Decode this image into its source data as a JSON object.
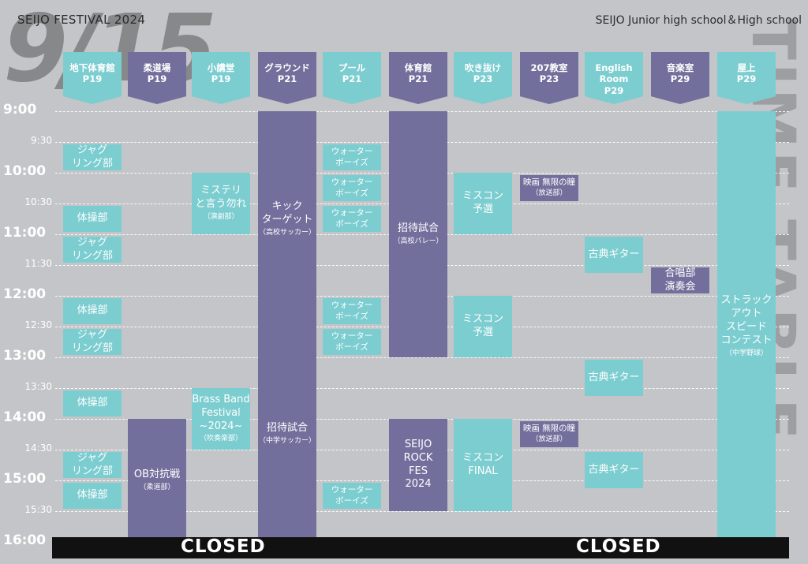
{
  "header": {
    "left": "SEIJO FESTIVAL 2024",
    "right": "SEIJO Junior high school＆High school",
    "date": "9/15",
    "vertical": "TIME TABLE"
  },
  "columns": [
    {
      "name": "地下体育館",
      "page": "P19"
    },
    {
      "name": "柔道場",
      "page": "P19"
    },
    {
      "name": "小講堂",
      "page": "P19"
    },
    {
      "name": "グラウンド",
      "page": "P21"
    },
    {
      "name": "プール",
      "page": "P21"
    },
    {
      "name": "体育館",
      "page": "P21"
    },
    {
      "name": "吹き抜け",
      "page": "P23"
    },
    {
      "name": "207教室",
      "page": "P23"
    },
    {
      "name": "English\nRoom",
      "page": "P29"
    },
    {
      "name": "音楽室",
      "page": "P29"
    },
    {
      "name": "屋上",
      "page": "P29"
    }
  ],
  "times": {
    "hours": [
      "9:00",
      "10:00",
      "11:00",
      "12:00",
      "13:00",
      "14:00",
      "15:00",
      "16:00"
    ],
    "halves": [
      "9:30",
      "10:30",
      "11:30",
      "12:30",
      "13:30",
      "14:30",
      "15:30"
    ]
  },
  "events": [
    {
      "col": 0,
      "start": "9:30",
      "end": "10:00",
      "title": "ジャグ\nリング部",
      "sub": "",
      "color": "teal"
    },
    {
      "col": 0,
      "start": "10:30",
      "end": "11:00",
      "title": "体操部",
      "sub": "",
      "color": "teal"
    },
    {
      "col": 0,
      "start": "11:00",
      "end": "11:30",
      "title": "ジャグ\nリング部",
      "sub": "",
      "color": "teal"
    },
    {
      "col": 0,
      "start": "12:00",
      "end": "12:30",
      "title": "体操部",
      "sub": "",
      "color": "teal"
    },
    {
      "col": 0,
      "start": "12:30",
      "end": "13:00",
      "title": "ジャグ\nリング部",
      "sub": "",
      "color": "teal"
    },
    {
      "col": 0,
      "start": "13:30",
      "end": "14:00",
      "title": "体操部",
      "sub": "",
      "color": "teal"
    },
    {
      "col": 0,
      "start": "14:30",
      "end": "15:00",
      "title": "ジャグ\nリング部",
      "sub": "",
      "color": "teal"
    },
    {
      "col": 0,
      "start": "15:00",
      "end": "15:30",
      "title": "体操部",
      "sub": "",
      "color": "teal"
    },
    {
      "col": 1,
      "start": "14:00",
      "end": "16:00",
      "title": "OB対抗戦",
      "sub": "（柔道部）",
      "color": "purple"
    },
    {
      "col": 2,
      "start": "10:00",
      "end": "11:00",
      "title": "ミステリ\nと言う勿れ",
      "sub": "（演劇部）",
      "color": "teal"
    },
    {
      "col": 2,
      "start": "13:30",
      "end": "14:30",
      "title": "Brass Band\nFestival\n~2024~",
      "sub": "（吹奏楽部）",
      "color": "teal"
    },
    {
      "col": 3,
      "start": "9:00",
      "end": "12:30",
      "title": "キック\nターゲット",
      "sub": "（高校サッカー）",
      "color": "purple"
    },
    {
      "col": 3,
      "start": "12:30",
      "end": "16:00",
      "title": "招待試合",
      "sub": "（中学サッカー）",
      "color": "purple"
    },
    {
      "col": 4,
      "start": "9:30",
      "end": "10:00",
      "title": "ウォーター\nボーイズ",
      "sub": "",
      "color": "teal",
      "small": true
    },
    {
      "col": 4,
      "start": "10:00",
      "end": "10:30",
      "title": "ウォーター\nボーイズ",
      "sub": "",
      "color": "teal",
      "small": true
    },
    {
      "col": 4,
      "start": "10:30",
      "end": "11:00",
      "title": "ウォーター\nボーイズ",
      "sub": "",
      "color": "teal",
      "small": true
    },
    {
      "col": 4,
      "start": "12:00",
      "end": "12:30",
      "title": "ウォーター\nボーイズ",
      "sub": "",
      "color": "teal",
      "small": true
    },
    {
      "col": 4,
      "start": "12:30",
      "end": "13:00",
      "title": "ウォーター\nボーイズ",
      "sub": "",
      "color": "teal",
      "small": true
    },
    {
      "col": 4,
      "start": "15:00",
      "end": "15:30",
      "title": "ウォーター\nボーイズ",
      "sub": "",
      "color": "teal",
      "small": true
    },
    {
      "col": 5,
      "start": "9:00",
      "end": "13:00",
      "title": "招待試合",
      "sub": "（高校バレー）",
      "color": "purple"
    },
    {
      "col": 5,
      "start": "14:00",
      "end": "15:30",
      "title": "SEIJO\nROCK\nFES\n2024",
      "sub": "",
      "color": "purple"
    },
    {
      "col": 6,
      "start": "10:00",
      "end": "11:00",
      "title": "ミスコン\n予選",
      "sub": "",
      "color": "teal"
    },
    {
      "col": 6,
      "start": "12:00",
      "end": "13:00",
      "title": "ミスコン\n予選",
      "sub": "",
      "color": "teal"
    },
    {
      "col": 6,
      "start": "14:00",
      "end": "15:30",
      "title": "ミスコン\nFINAL",
      "sub": "",
      "color": "teal"
    },
    {
      "col": 7,
      "start": "10:00",
      "end": "10:30",
      "title": "映画 無限の瞳",
      "sub": "（放送部）",
      "color": "purple",
      "small": true
    },
    {
      "col": 7,
      "start": "14:00",
      "end": "14:30",
      "title": "映画 無限の瞳",
      "sub": "（放送部）",
      "color": "purple",
      "small": true
    },
    {
      "col": 8,
      "start": "11:00",
      "end": "11:40",
      "title": "古典ギター",
      "sub": "",
      "color": "teal"
    },
    {
      "col": 8,
      "start": "13:00",
      "end": "13:40",
      "title": "古典ギター",
      "sub": "",
      "color": "teal"
    },
    {
      "col": 8,
      "start": "14:30",
      "end": "15:10",
      "title": "古典ギター",
      "sub": "",
      "color": "teal"
    },
    {
      "col": 9,
      "start": "11:30",
      "end": "12:00",
      "title": "合唱部\n演奏会",
      "sub": "",
      "color": "purple"
    },
    {
      "col": 10,
      "start": "9:00",
      "end": "16:00",
      "title": "ストラック\nアウト\nスピード\nコンテスト",
      "sub": "（中学野球）",
      "color": "teal"
    }
  ],
  "closed": [
    "CLOSED",
    "CLOSED"
  ],
  "colors": {
    "teal": "#7ccdd0",
    "purple": "#736f9c",
    "background": "#c3c5c8"
  }
}
